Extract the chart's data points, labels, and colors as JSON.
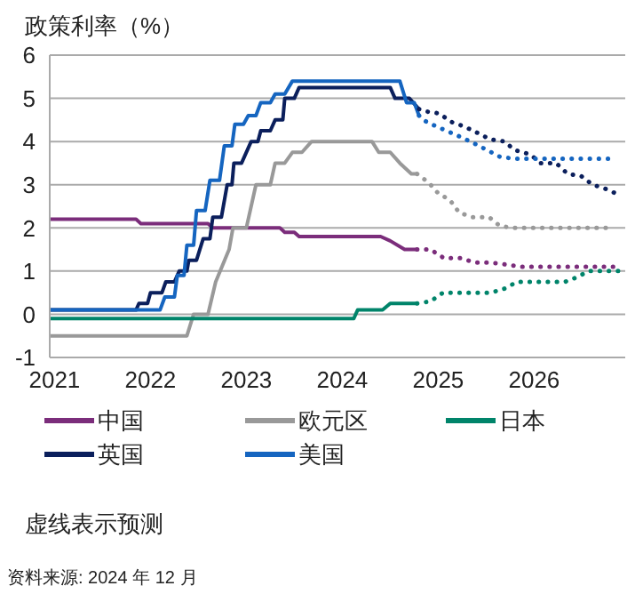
{
  "chart_data": {
    "type": "line",
    "ylabel": "政策利率（%）",
    "xlim": [
      2020.95,
      2026.95
    ],
    "xticks": [
      2021,
      2022,
      2023,
      2024,
      2025,
      2026
    ],
    "ylim": [
      -1,
      6
    ],
    "yticks": [
      -1,
      0,
      1,
      2,
      3,
      4,
      5,
      6
    ],
    "grid": "y",
    "legend": "bottom",
    "marker": "none",
    "line_style": "solid",
    "annotations": [
      "虚线表示预测",
      "资料来源: 2024 年 12 月"
    ],
    "series": [
      {
        "name": "中国",
        "color": "#7b2d7b",
        "x": [
          2020.95,
          2021.85,
          2021.9,
          2022.6,
          2022.65,
          2023.35,
          2023.4,
          2023.5,
          2023.55,
          2024.4,
          2024.5,
          2024.65,
          2024.78
        ],
        "values": [
          2.2,
          2.2,
          2.1,
          2.1,
          2.0,
          2.0,
          1.9,
          1.9,
          1.8,
          1.8,
          1.7,
          1.5,
          1.5
        ]
      },
      {
        "name": "欧元区",
        "color": "#999999",
        "x": [
          2020.95,
          2022.38,
          2022.45,
          2022.6,
          2022.68,
          2022.82,
          2022.86,
          2023.0,
          2023.1,
          2023.25,
          2023.3,
          2023.4,
          2023.48,
          2023.58,
          2023.68,
          2024.31,
          2024.38,
          2024.5,
          2024.6,
          2024.72,
          2024.78
        ],
        "values": [
          -0.5,
          -0.5,
          0,
          0,
          0.75,
          1.5,
          2.0,
          2.0,
          3.0,
          3.0,
          3.5,
          3.5,
          3.75,
          3.75,
          4.0,
          4.0,
          3.75,
          3.75,
          3.5,
          3.25,
          3.25
        ]
      },
      {
        "name": "日本",
        "color": "#00846a",
        "x": [
          2020.95,
          2024.12,
          2024.16,
          2024.42,
          2024.5,
          2024.78
        ],
        "values": [
          -0.1,
          -0.1,
          0.1,
          0.1,
          0.25,
          0.25
        ]
      },
      {
        "name": "英国",
        "color": "#0b1f5c",
        "x": [
          2020.95,
          2021.85,
          2021.88,
          2021.97,
          2022.0,
          2022.12,
          2022.16,
          2022.25,
          2022.3,
          2022.38,
          2022.4,
          2022.48,
          2022.55,
          2022.62,
          2022.65,
          2022.74,
          2022.8,
          2022.85,
          2022.87,
          2022.95,
          2023.05,
          2023.12,
          2023.15,
          2023.25,
          2023.3,
          2023.38,
          2023.4,
          2023.5,
          2023.55,
          2024.5,
          2024.55,
          2024.7,
          2024.8
        ],
        "values": [
          0.1,
          0.1,
          0.25,
          0.25,
          0.5,
          0.5,
          0.75,
          0.75,
          1.0,
          1.0,
          1.25,
          1.25,
          1.75,
          1.75,
          2.25,
          2.25,
          3.0,
          3.0,
          3.5,
          3.5,
          4.0,
          4.0,
          4.25,
          4.25,
          4.5,
          4.5,
          5.0,
          5.0,
          5.25,
          5.25,
          5.0,
          5.0,
          4.75
        ]
      },
      {
        "name": "美国",
        "color": "#1565c0",
        "x": [
          2020.95,
          2022.1,
          2022.15,
          2022.25,
          2022.28,
          2022.35,
          2022.38,
          2022.45,
          2022.48,
          2022.57,
          2022.62,
          2022.72,
          2022.77,
          2022.85,
          2022.88,
          2022.97,
          2023.02,
          2023.1,
          2023.15,
          2023.25,
          2023.3,
          2023.4,
          2023.48,
          2024.6,
          2024.67,
          2024.75,
          2024.8
        ],
        "values": [
          0.1,
          0.1,
          0.4,
          0.4,
          0.9,
          0.9,
          1.6,
          1.6,
          2.4,
          2.4,
          3.1,
          3.1,
          3.9,
          3.9,
          4.4,
          4.4,
          4.6,
          4.6,
          4.9,
          4.9,
          5.1,
          5.1,
          5.4,
          5.4,
          4.9,
          4.9,
          4.6
        ]
      },
      {
        "color": "#7b2d7b",
        "line_style": "dotted",
        "x": [
          2024.78,
          2024.92,
          2025.06,
          2025.23,
          2025.38,
          2025.54,
          2025.71,
          2025.87,
          2026.02,
          2026.18,
          2026.35,
          2026.52,
          2026.68,
          2026.86
        ],
        "values": [
          1.5,
          1.5,
          1.3,
          1.3,
          1.2,
          1.2,
          1.15,
          1.1,
          1.1,
          1.1,
          1.1,
          1.1,
          1.1,
          1.1
        ]
      },
      {
        "color": "#999999",
        "line_style": "dotted",
        "x": [
          2024.78,
          2024.9,
          2025.0,
          2025.12,
          2025.22,
          2025.36,
          2025.53,
          2025.64,
          2025.77,
          2025.93,
          2026.08,
          2026.27,
          2026.44,
          2026.61,
          2026.79
        ],
        "values": [
          3.25,
          3.05,
          2.8,
          2.65,
          2.35,
          2.25,
          2.25,
          2.05,
          2.0,
          2.0,
          2.0,
          2.0,
          2.0,
          2.0,
          2.0
        ]
      },
      {
        "color": "#00846a",
        "line_style": "dotted",
        "x": [
          2024.78,
          2024.92,
          2025.05,
          2025.21,
          2025.38,
          2025.55,
          2025.7,
          2025.82,
          2025.99,
          2026.16,
          2026.32,
          2026.44,
          2026.57,
          2026.74,
          2026.89
        ],
        "values": [
          0.25,
          0.3,
          0.5,
          0.5,
          0.5,
          0.5,
          0.6,
          0.75,
          0.75,
          0.75,
          0.75,
          0.85,
          1.0,
          1.0,
          1.0
        ]
      },
      {
        "color": "#0b1f5c",
        "line_style": "dotted",
        "x": [
          2024.8,
          2024.86,
          2025.01,
          2025.14,
          2025.27,
          2025.41,
          2025.54,
          2025.69,
          2025.8,
          2025.96,
          2026.07,
          2026.23,
          2026.35,
          2026.49,
          2026.61,
          2026.75,
          2026.9
        ],
        "values": [
          4.75,
          4.7,
          4.65,
          4.45,
          4.35,
          4.2,
          4.05,
          4.0,
          3.8,
          3.7,
          3.5,
          3.5,
          3.25,
          3.2,
          3.0,
          2.9,
          2.75
        ]
      },
      {
        "color": "#1565c0",
        "line_style": "dotted",
        "x": [
          2024.8,
          2024.84,
          2024.98,
          2025.24,
          2025.38,
          2025.64,
          2025.79,
          2025.96,
          2026.13,
          2026.28,
          2026.44,
          2026.61,
          2026.78
        ],
        "values": [
          4.6,
          4.5,
          4.35,
          4.1,
          3.95,
          3.65,
          3.6,
          3.6,
          3.6,
          3.6,
          3.6,
          3.6,
          3.6
        ]
      }
    ]
  }
}
